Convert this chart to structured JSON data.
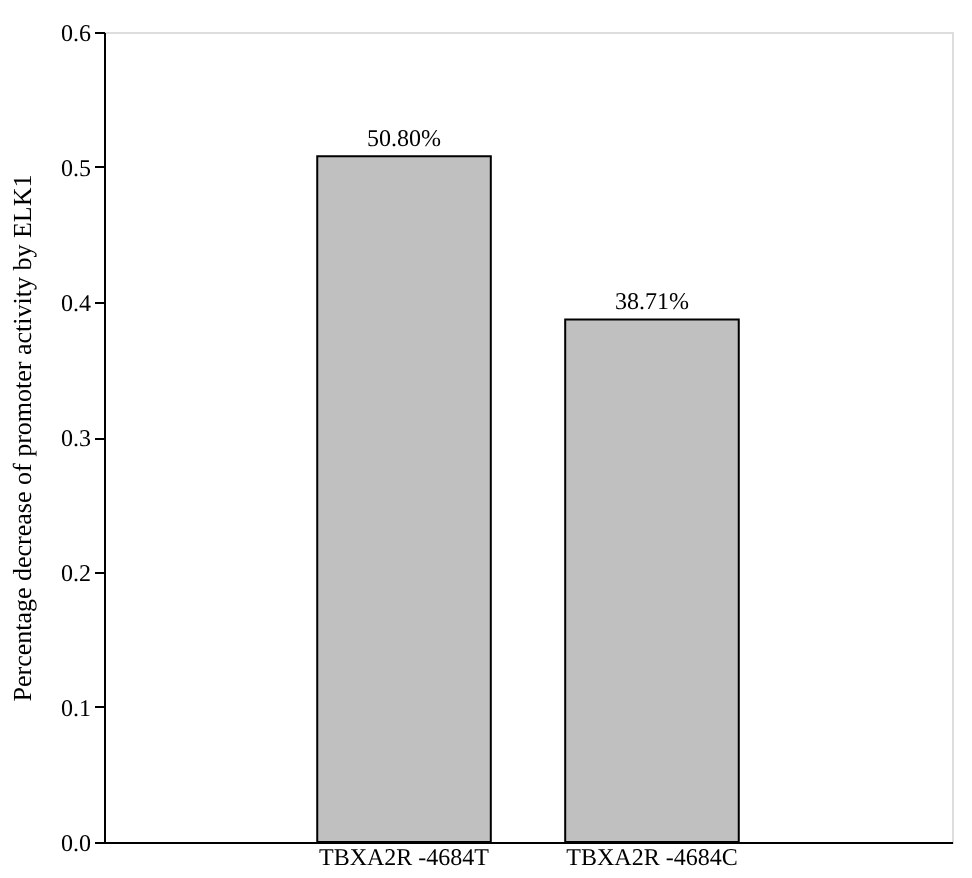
{
  "chart_data": {
    "type": "bar",
    "ylabel": "Percentage decrease of promoter activity by ELK1",
    "categories": [
      "TBXA2R -4684T",
      "TBXA2R -4684C"
    ],
    "values": [
      0.508,
      0.3871
    ],
    "value_labels": [
      "50.80%",
      "38.71%"
    ],
    "color": "#c0c0c0",
    "ylim": [
      0,
      0.6
    ],
    "yticks": [
      {
        "value": 0,
        "label": "0.0"
      },
      {
        "value": 0.1,
        "label": "0.1"
      },
      {
        "value": 0.2,
        "label": "0.2"
      },
      {
        "value": 0.3,
        "label": "0.3"
      },
      {
        "value": 0.4,
        "label": "0.4"
      },
      {
        "value": 0.5,
        "label": "0.5"
      },
      {
        "value": 0.6,
        "label": "0.6"
      }
    ],
    "grid": false
  }
}
